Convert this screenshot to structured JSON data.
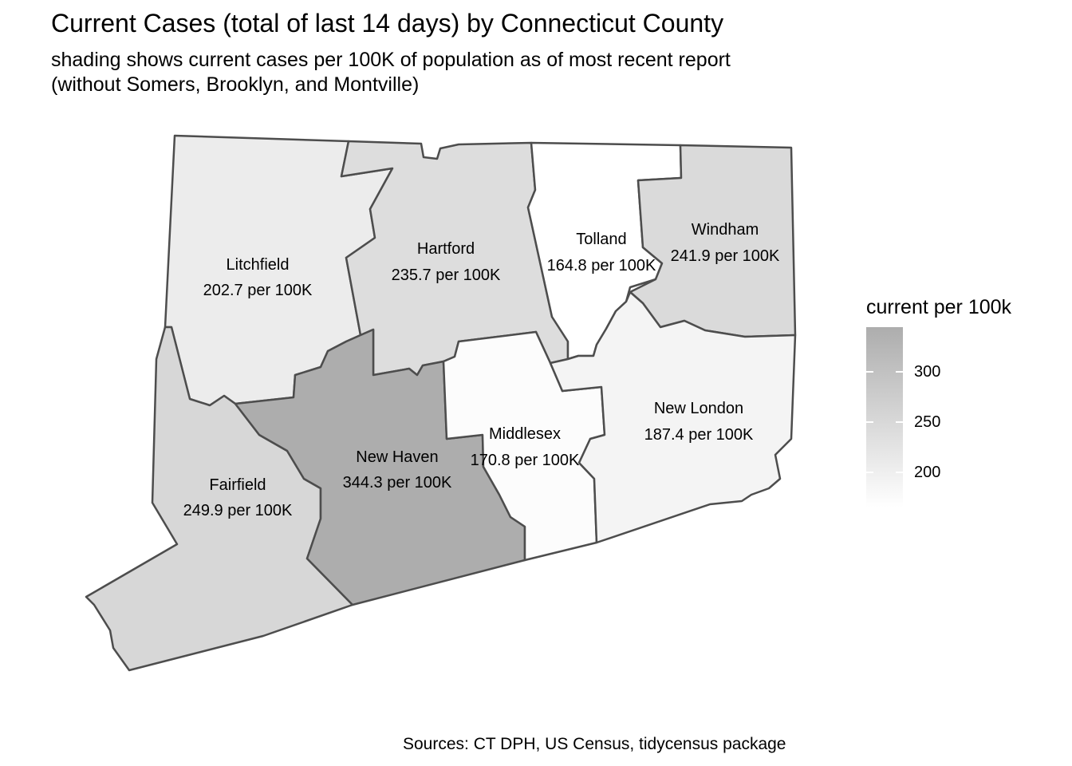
{
  "title": "Current Cases (total of last 14 days) by Connecticut County",
  "subtitle": {
    "line1": "shading shows current cases per 100K of population as of most recent report",
    "line2": "(without Somers, Brooklyn, and Montville)"
  },
  "caption": "Sources: CT DPH, US Census, tidycensus package",
  "legend": {
    "title": "current per 100k",
    "range": [
      164.8,
      344.3
    ],
    "color_low": "#ffffff",
    "color_high": "#adadad",
    "ticks": [
      {
        "value": 300,
        "label": "300"
      },
      {
        "value": 250,
        "label": "250"
      },
      {
        "value": 200,
        "label": "200"
      }
    ]
  },
  "counties": {
    "litchfield": {
      "name": "Litchfield",
      "value": 202.7,
      "label": "202.7 per 100K",
      "fill": "#ececec"
    },
    "hartford": {
      "name": "Hartford",
      "value": 235.7,
      "label": "235.7 per 100K",
      "fill": "#dddddd"
    },
    "tolland": {
      "name": "Tolland",
      "value": 164.8,
      "label": "164.8 per 100K",
      "fill": "#ffffff"
    },
    "windham": {
      "name": "Windham",
      "value": 241.9,
      "label": "241.9 per 100K",
      "fill": "#dadada"
    },
    "fairfield": {
      "name": "Fairfield",
      "value": 249.9,
      "label": "249.9 per 100K",
      "fill": "#d7d7d7"
    },
    "new_haven": {
      "name": "New Haven",
      "value": 344.3,
      "label": "344.3 per 100K",
      "fill": "#adadad"
    },
    "middlesex": {
      "name": "Middlesex",
      "value": 170.8,
      "label": "170.8 per 100K",
      "fill": "#fcfcfc"
    },
    "new_london": {
      "name": "New London",
      "value": 187.4,
      "label": "187.4 per 100K",
      "fill": "#f4f4f4"
    }
  }
}
